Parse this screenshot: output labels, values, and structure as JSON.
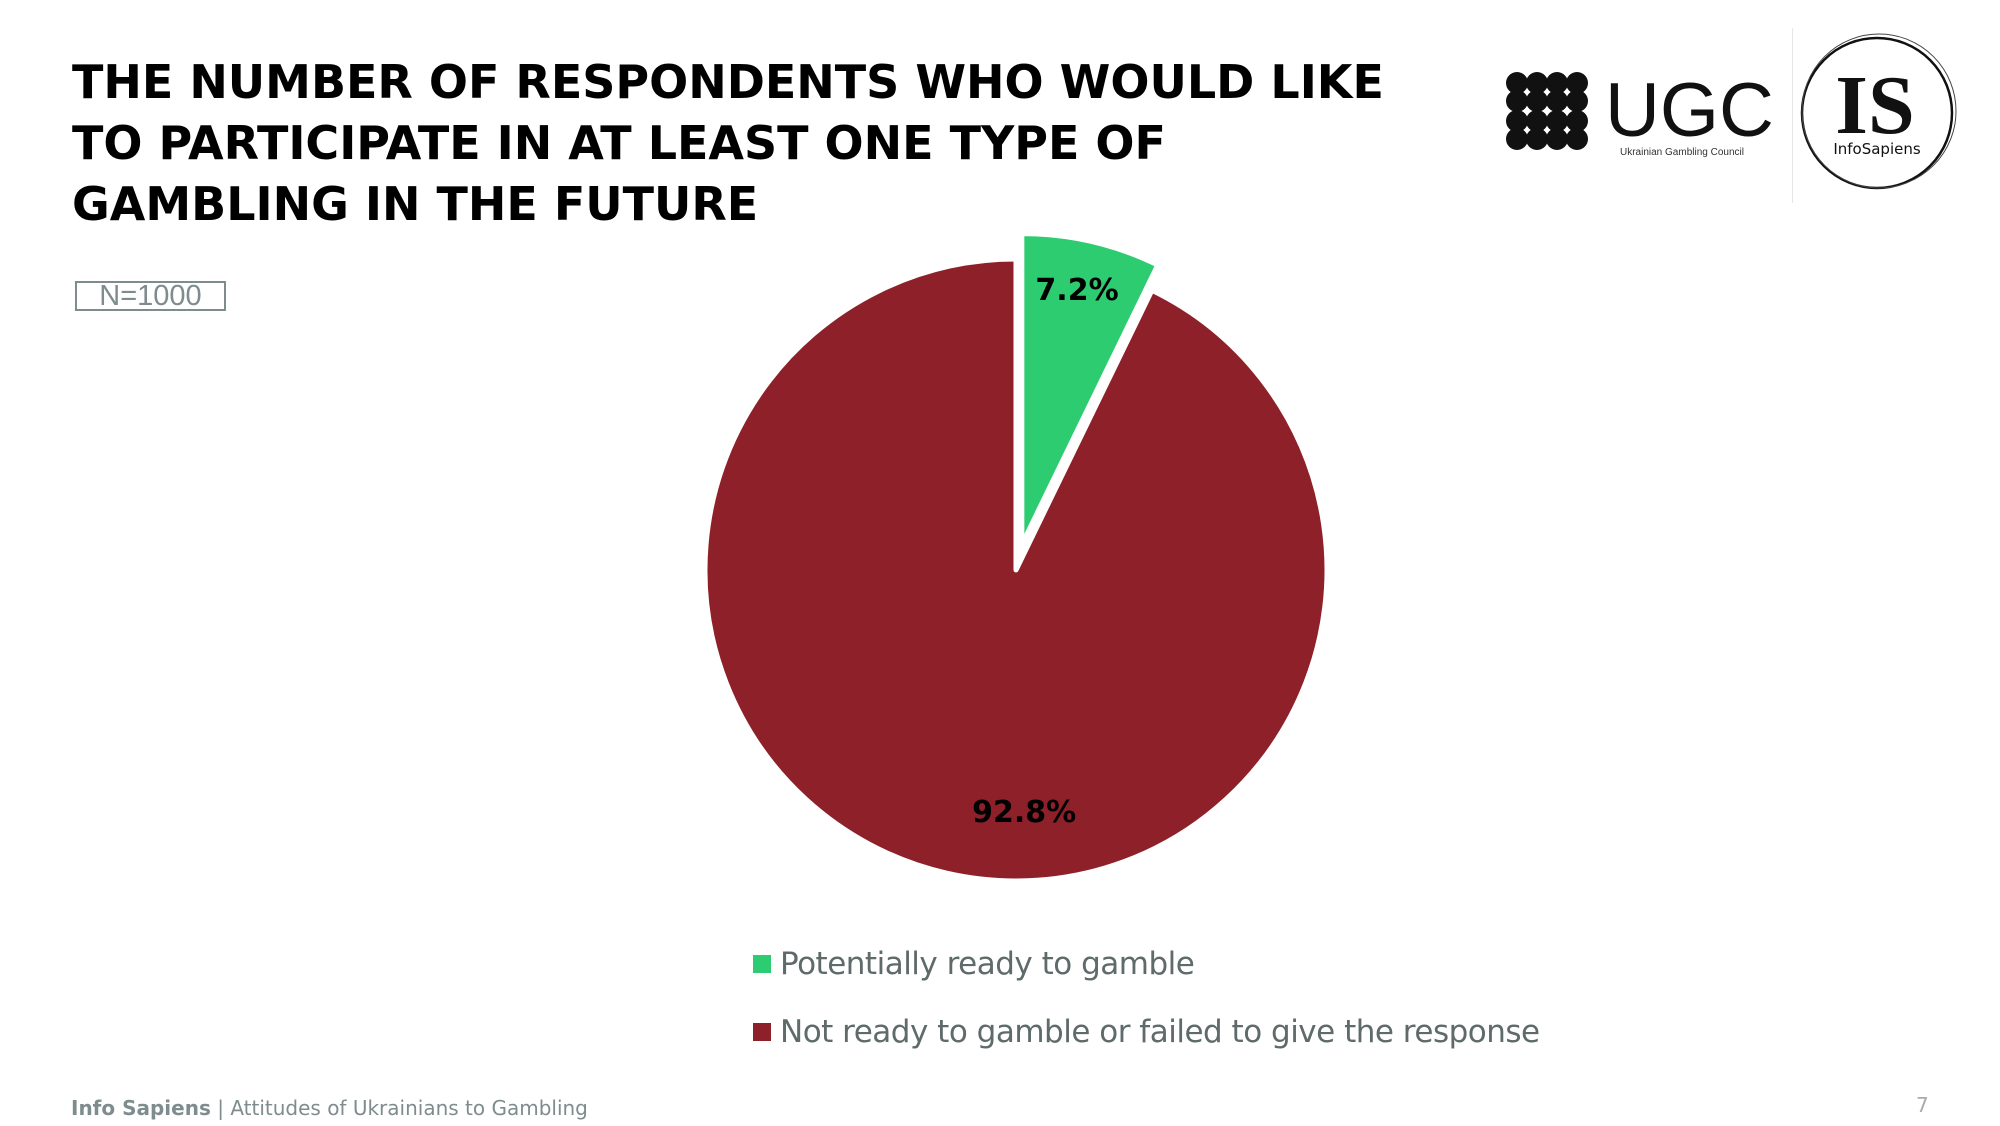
{
  "title_lines": [
    "THE NUMBER OF RESPONDENTS WHO WOULD LIKE",
    "TO PARTICIPATE IN AT LEAST ONE TYPE OF",
    "GAMBLING IN THE FUTURE"
  ],
  "sample_size": "N=1000",
  "logos": {
    "ugc": {
      "name": "UGC",
      "subtitle": "Ukrainian Gambling Council",
      "icon": "clover-icon"
    },
    "infosapiens": {
      "name": "IS",
      "subtitle": "InfoSapiens"
    }
  },
  "chart_data": {
    "type": "pie",
    "title": "THE NUMBER OF RESPONDENTS WHO WOULD LIKE TO PARTICIPATE IN AT LEAST ONE TYPE OF GAMBLING IN THE FUTURE",
    "categories": [
      "Potentially ready to gamble",
      "Not ready to gamble or failed to give the response"
    ],
    "values": [
      7.2,
      92.8
    ],
    "data_labels": [
      "7.2%",
      "92.8%"
    ],
    "colors": [
      "#2ecc71",
      "#8e2029"
    ],
    "exploded": [
      true,
      false
    ],
    "legend_position": "bottom"
  },
  "footer": {
    "brand": "Info Sapiens",
    "separator": " | ",
    "text": "Attitudes of Ukrainians to Gambling"
  },
  "page_number": "7"
}
